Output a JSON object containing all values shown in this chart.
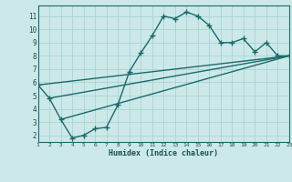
{
  "title": "",
  "xlabel": "Humidex (Indice chaleur)",
  "ylabel": "",
  "bg_color": "#cce8e8",
  "line_color": "#1a6b6b",
  "marker": "+",
  "markersize": 4,
  "linewidth": 1.0,
  "xlim": [
    1,
    23
  ],
  "ylim": [
    1.5,
    11.8
  ],
  "xticks": [
    1,
    2,
    3,
    4,
    5,
    6,
    7,
    8,
    9,
    10,
    11,
    12,
    13,
    14,
    15,
    16,
    17,
    18,
    19,
    20,
    21,
    22,
    23
  ],
  "yticks": [
    2,
    3,
    4,
    5,
    6,
    7,
    8,
    9,
    10,
    11
  ],
  "grid_color": "#aad4d4",
  "series": [
    [
      1,
      5.8
    ],
    [
      2,
      4.8
    ],
    [
      3,
      3.2
    ],
    [
      4,
      1.8
    ],
    [
      5,
      2.0
    ],
    [
      6,
      2.5
    ],
    [
      7,
      2.6
    ],
    [
      8,
      4.3
    ],
    [
      9,
      6.8
    ],
    [
      10,
      8.2
    ],
    [
      11,
      9.5
    ],
    [
      12,
      11.0
    ],
    [
      13,
      10.8
    ],
    [
      14,
      11.3
    ],
    [
      15,
      11.0
    ],
    [
      16,
      10.3
    ],
    [
      17,
      9.0
    ],
    [
      18,
      9.0
    ],
    [
      19,
      9.3
    ],
    [
      20,
      8.3
    ],
    [
      21,
      9.0
    ],
    [
      22,
      8.0
    ],
    [
      23,
      8.0
    ]
  ],
  "line2": [
    [
      1,
      5.8
    ],
    [
      23,
      8.0
    ]
  ],
  "line3": [
    [
      2,
      4.8
    ],
    [
      23,
      8.0
    ]
  ],
  "line4": [
    [
      3,
      3.2
    ],
    [
      23,
      8.0
    ]
  ]
}
